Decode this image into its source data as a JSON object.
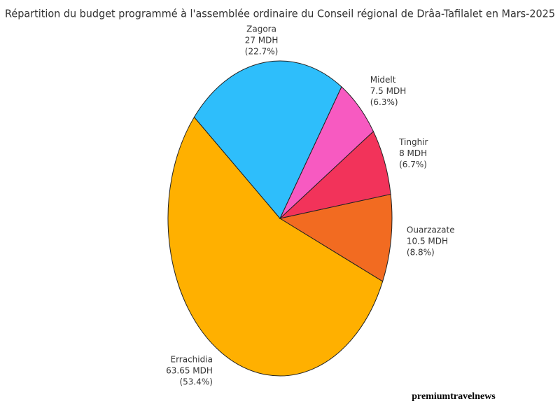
{
  "chart_data": {
    "type": "pie",
    "title": "Répartition du budget programmé à l'assemblée ordinaire du Conseil régional de Drâa-Tafilalet en Mars-2025",
    "categories": [
      "Errachidia",
      "Ouarzazate",
      "Tinghir",
      "Midelt",
      "Zagora"
    ],
    "values": [
      63.65,
      10.5,
      8,
      7.5,
      27
    ],
    "value_labels": [
      "63.65 MDH",
      "10.5 MDH",
      "8 MDH",
      "7.5 MDH",
      "27 MDH"
    ],
    "percent_labels": [
      "(53.4%)",
      "(8.8%)",
      "(6.7%)",
      "(6.3%)",
      "(22.7%)"
    ],
    "colors": [
      "#FFB000",
      "#F26B21",
      "#F2335A",
      "#F75AC1",
      "#2EBEFB"
    ]
  },
  "watermark": "premiumtravelnews"
}
